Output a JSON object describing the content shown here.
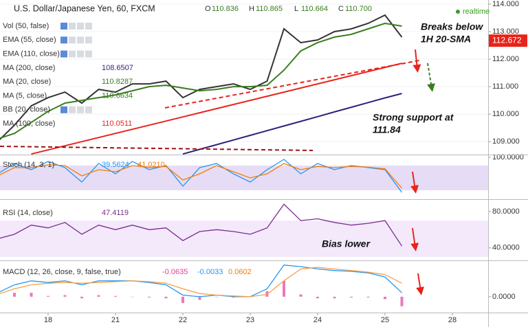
{
  "chart_data": [
    {
      "type": "line",
      "title": "U.S. Dollar/Japanese Yen, 60, FXCM",
      "ohlc": [
        {
          "label": "O",
          "value": "110.836"
        },
        {
          "label": "H",
          "value": "110.865"
        },
        {
          "label": "L",
          "value": "110.664"
        },
        {
          "label": "C",
          "value": "110.700"
        }
      ],
      "status": "realtime",
      "indicators": [
        {
          "label": "Vol (50, false)"
        },
        {
          "label": "EMA (55, close)"
        },
        {
          "label": "EMA (110, close)"
        },
        {
          "label": "MA (200, close)",
          "value": "108.6507",
          "color": "#2f1f7a"
        },
        {
          "label": "MA (20, close)",
          "value": "110.8287",
          "color": "#3a7d1e"
        },
        {
          "label": "MA (5, close)",
          "value": "110.6634",
          "color": "#3a7d1e"
        },
        {
          "label": "BB (20, close)"
        },
        {
          "label": "MA (100, close)",
          "value": "110.0511",
          "color": "#e8231a"
        }
      ],
      "ylim": [
        108.53,
        114.15
      ],
      "yticks": [
        {
          "value": 114,
          "label": "114.000"
        },
        {
          "value": 113,
          "label": "113.000"
        },
        {
          "value": 112,
          "label": "112.000"
        },
        {
          "value": 111,
          "label": "111.000"
        },
        {
          "value": 110,
          "label": "110.000"
        },
        {
          "value": 109,
          "label": "109.000"
        }
      ],
      "grid": true,
      "last_price": 112.672,
      "last_price_color": "#e8231a",
      "series": [
        {
          "color": "#333333",
          "values": [
            109.0,
            109.6,
            110.3,
            110.6,
            110.8,
            110.4,
            110.9,
            110.8,
            111.1,
            111.1,
            111.2,
            110.6,
            110.9,
            111.0,
            111.1,
            110.9,
            111.2,
            113.1,
            112.6,
            112.7,
            113.0,
            113.1,
            113.3,
            113.6,
            112.8,
            null,
            null,
            null
          ]
        },
        {
          "name": "MA (20, close)",
          "color": "#3a7d1e",
          "values": [
            109.1,
            109.3,
            109.7,
            110.1,
            110.4,
            110.5,
            110.6,
            110.7,
            110.85,
            111.0,
            111.05,
            110.95,
            110.85,
            110.9,
            111.0,
            111.0,
            111.05,
            111.6,
            112.3,
            112.6,
            112.8,
            112.9,
            113.1,
            113.3,
            113.2,
            null,
            null,
            null
          ]
        },
        {
          "name": "MA (100, close)",
          "color": "#e8231a",
          "values": [
            null,
            null,
            108.55,
            108.7,
            108.85,
            109.0,
            109.15,
            109.3,
            109.45,
            109.6,
            109.75,
            109.9,
            110.05,
            110.2,
            110.35,
            110.5,
            110.65,
            110.8,
            110.95,
            111.1,
            111.25,
            111.4,
            111.55,
            111.7,
            111.85,
            null,
            null,
            null
          ]
        },
        {
          "name": "MA (200, close)",
          "color": "#2f1f7a",
          "values": [
            null,
            null,
            null,
            null,
            null,
            null,
            null,
            null,
            null,
            null,
            null,
            108.55,
            108.72,
            108.89,
            109.06,
            109.23,
            109.4,
            109.57,
            109.74,
            109.91,
            110.08,
            110.25,
            110.42,
            110.59,
            110.75,
            null,
            null,
            null
          ]
        }
      ]
    },
    {
      "type": "line",
      "title": "Stoch (14, 3, 1)",
      "legend_values": [
        {
          "text": "39.5624",
          "color": "#2196f3"
        },
        {
          "text": "41.0210",
          "color": "#f57c00"
        }
      ],
      "ylim": [
        0,
        105
      ],
      "yticks": [
        {
          "value": 100,
          "label": "100.0000"
        }
      ],
      "band": [
        20,
        80
      ],
      "band_color": "#e6dcf5",
      "grid": false,
      "series": [
        {
          "color": "#2196f3",
          "values": [
            60,
            85,
            70,
            90,
            75,
            40,
            85,
            60,
            90,
            70,
            80,
            30,
            75,
            85,
            60,
            40,
            70,
            95,
            60,
            85,
            70,
            80,
            75,
            70,
            15,
            null,
            null,
            null
          ]
        },
        {
          "color": "#f57c00",
          "values": [
            55,
            75,
            75,
            82,
            80,
            55,
            70,
            65,
            80,
            75,
            78,
            45,
            60,
            80,
            65,
            50,
            60,
            85,
            70,
            78,
            75,
            78,
            76,
            72,
            25,
            null,
            null,
            null
          ]
        }
      ]
    },
    {
      "type": "line",
      "title": "RSI (14, close)",
      "legend_values": [
        {
          "text": "47.4119",
          "color": "#7b2b8c"
        }
      ],
      "ylim": [
        27,
        92
      ],
      "yticks": [
        {
          "value": 80,
          "label": "80.0000"
        },
        {
          "value": 40,
          "label": "40.0000"
        }
      ],
      "band": [
        30,
        70
      ],
      "band_color": "#f3e9fb",
      "grid": false,
      "series": [
        {
          "color": "#7b2b8c",
          "values": [
            50,
            55,
            65,
            62,
            68,
            55,
            65,
            60,
            65,
            60,
            62,
            48,
            58,
            60,
            58,
            55,
            62,
            88,
            70,
            72,
            68,
            65,
            67,
            70,
            42,
            null,
            null,
            null
          ]
        }
      ]
    },
    {
      "type": "line",
      "title": "MACD (12, 26, close, 9, false, true)",
      "legend_values": [
        {
          "text": "-0.0635",
          "color": "#e040a0"
        },
        {
          "text": "-0.0033",
          "color": "#2196f3"
        },
        {
          "text": "0.0602",
          "color": "#f57c00"
        }
      ],
      "ylim": [
        -0.2,
        0.45
      ],
      "yticks": [
        {
          "value": 0,
          "label": "0.0000"
        }
      ],
      "grid": false,
      "categories": [
        null,
        null,
        null,
        "18",
        null,
        null,
        null,
        "21",
        null,
        null,
        null,
        "22",
        null,
        null,
        null,
        "23",
        null,
        null,
        null,
        "24",
        null,
        null,
        null,
        "25",
        null,
        null,
        null,
        "28"
      ],
      "series": [
        {
          "color": "#e040a0",
          "style": "bar",
          "values": [
            0.02,
            0.05,
            0.05,
            0.01,
            0.02,
            -0.02,
            0.02,
            0.01,
            0,
            -0.01,
            -0.02,
            -0.08,
            -0.04,
            0,
            -0.01,
            0,
            0.07,
            0.2,
            0.03,
            -0.02,
            -0.02,
            -0.01,
            -0.01,
            -0.03,
            -0.12,
            null,
            null,
            null
          ]
        },
        {
          "color": "#2196f3",
          "values": [
            0.05,
            0.15,
            0.2,
            0.18,
            0.2,
            0.15,
            0.2,
            0.2,
            0.2,
            0.18,
            0.15,
            0.02,
            0.0,
            0.02,
            0.0,
            0.0,
            0.1,
            0.4,
            0.38,
            0.35,
            0.33,
            0.32,
            0.3,
            0.25,
            0.05,
            null,
            null,
            null
          ]
        },
        {
          "color": "#f5a04a",
          "values": [
            0.03,
            0.1,
            0.15,
            0.17,
            0.18,
            0.17,
            0.18,
            0.19,
            0.2,
            0.19,
            0.17,
            0.1,
            0.04,
            0.02,
            0.01,
            0.0,
            0.03,
            0.2,
            0.35,
            0.37,
            0.35,
            0.33,
            0.31,
            0.28,
            0.17,
            null,
            null,
            null
          ]
        }
      ]
    }
  ],
  "annotations": [
    [
      "Breaks below",
      "1H 20-SMA"
    ],
    [
      "Strong support at",
      "111.84"
    ],
    [
      "Bias lower"
    ]
  ]
}
